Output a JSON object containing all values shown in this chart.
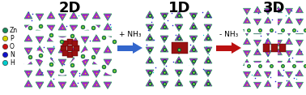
{
  "panel_labels": [
    "2D",
    "1D",
    "3D"
  ],
  "panel_label_fontsize": 13,
  "panel_label_fontweight": "bold",
  "arrow1_text": "+ NH₃",
  "arrow2_text": "- NH₃",
  "arrow1_color": "#3366cc",
  "arrow2_color": "#bb1111",
  "arrow_text_fontsize": 6.5,
  "legend_items": [
    {
      "label": "Zn",
      "color": "#1a8a5a",
      "shape": "o"
    },
    {
      "label": "P",
      "color": "#d4d400",
      "shape": "o"
    },
    {
      "label": "O",
      "color": "#cc1111",
      "shape": "o"
    },
    {
      "label": "N",
      "color": "#1111cc",
      "shape": "o"
    },
    {
      "label": "H",
      "color": "#00cccc",
      "shape": "o"
    }
  ],
  "legend_fontsize": 5.5,
  "bg_color": "#ffffff",
  "crystal_purple": "#aa22cc",
  "crystal_green": "#22aa55",
  "crystal_red": "#991111",
  "crystal_yellow": "#dddd00",
  "crystal_blue": "#2222cc",
  "crystal_cyan": "#00cccc",
  "crystal_white": "#ffffff",
  "figsize": [
    3.78,
    1.17
  ],
  "dpi": 100
}
